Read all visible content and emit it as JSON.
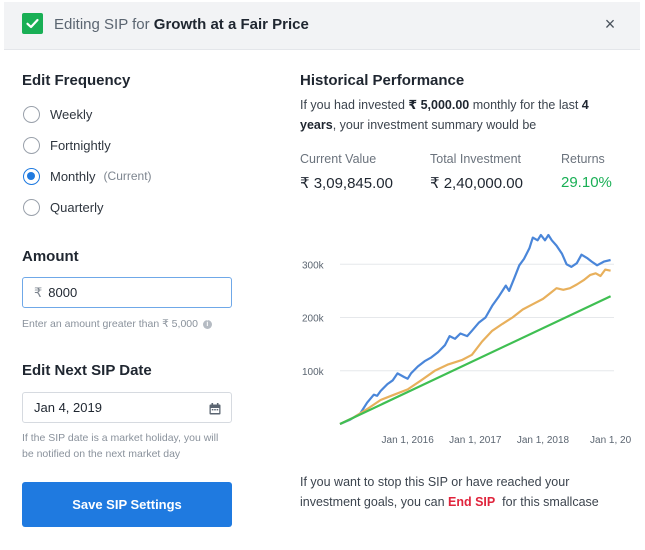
{
  "header": {
    "prefix": "Editing SIP for",
    "name": "Growth at a Fair Price",
    "close_glyph": "×"
  },
  "frequency": {
    "title": "Edit Frequency",
    "options": [
      {
        "label": "Weekly",
        "note": "",
        "selected": false
      },
      {
        "label": "Fortnightly",
        "note": "",
        "selected": false
      },
      {
        "label": "Monthly",
        "note": "(Current)",
        "selected": true
      },
      {
        "label": "Quarterly",
        "note": "",
        "selected": false
      }
    ]
  },
  "amount": {
    "title": "Amount",
    "currency": "₹",
    "value": "8000",
    "hint": "Enter an amount greater than ₹ 5,000"
  },
  "next_date": {
    "title": "Edit Next SIP Date",
    "value": "Jan 4, 2019",
    "hint_line1": "If the SIP date is a market holiday, you will",
    "hint_line2": "be notified on the next market day"
  },
  "save_button": "Save SIP Settings",
  "performance": {
    "title": "Historical Performance",
    "intro_1": "If you had invested ",
    "amount": "₹ 5,000.00",
    "intro_2": " monthly for the last ",
    "years": "4",
    "years_word": "years",
    "intro_3": ", your investment summary would be",
    "current_value_label": "Current Value",
    "current_value": "₹ 3,09,845.00",
    "total_investment_label": "Total Investment",
    "total_investment": "₹ 2,40,000.00",
    "returns_label": "Returns",
    "returns": "29.10%"
  },
  "footer": {
    "text_1": "If you want to stop this SIP or have reached your",
    "text_2": "investment goals, you can ",
    "link": "End SIP",
    "text_3": "  for this smallcase"
  },
  "colors": {
    "primary": "#1f7ae0",
    "green": "#19af55",
    "danger": "#e0243c",
    "series_current": "#4a86d9",
    "series_smallcase": "#e8b05c",
    "series_invested": "#3fbf52"
  },
  "chart_data": {
    "type": "line",
    "x_ticks": [
      "Jan 1, 2016",
      "Jan 1, 2017",
      "Jan 1, 2018",
      "Jan 1, 20"
    ],
    "y_ticks": [
      100000,
      200000,
      300000
    ],
    "y_tick_labels": [
      "100k",
      "200k",
      "300k"
    ],
    "ylim": [
      0,
      370000
    ],
    "xlim": [
      2015.0,
      2019.05
    ],
    "grid": true,
    "series": [
      {
        "color_key": "series_current",
        "points": [
          [
            2015.0,
            0
          ],
          [
            2015.15,
            8000
          ],
          [
            2015.3,
            20000
          ],
          [
            2015.4,
            40000
          ],
          [
            2015.5,
            55000
          ],
          [
            2015.55,
            53000
          ],
          [
            2015.6,
            62000
          ],
          [
            2015.7,
            75000
          ],
          [
            2015.78,
            82000
          ],
          [
            2015.85,
            95000
          ],
          [
            2015.95,
            88000
          ],
          [
            2016.0,
            85000
          ],
          [
            2016.05,
            95000
          ],
          [
            2016.15,
            108000
          ],
          [
            2016.25,
            118000
          ],
          [
            2016.35,
            125000
          ],
          [
            2016.45,
            135000
          ],
          [
            2016.55,
            148000
          ],
          [
            2016.62,
            165000
          ],
          [
            2016.7,
            160000
          ],
          [
            2016.78,
            170000
          ],
          [
            2016.88,
            165000
          ],
          [
            2016.95,
            175000
          ],
          [
            2017.05,
            190000
          ],
          [
            2017.15,
            200000
          ],
          [
            2017.25,
            222000
          ],
          [
            2017.35,
            240000
          ],
          [
            2017.45,
            260000
          ],
          [
            2017.5,
            250000
          ],
          [
            2017.58,
            275000
          ],
          [
            2017.65,
            298000
          ],
          [
            2017.72,
            310000
          ],
          [
            2017.8,
            330000
          ],
          [
            2017.85,
            350000
          ],
          [
            2017.92,
            345000
          ],
          [
            2017.97,
            355000
          ],
          [
            2018.03,
            345000
          ],
          [
            2018.08,
            355000
          ],
          [
            2018.13,
            345000
          ],
          [
            2018.2,
            335000
          ],
          [
            2018.28,
            320000
          ],
          [
            2018.35,
            300000
          ],
          [
            2018.42,
            295000
          ],
          [
            2018.5,
            302000
          ],
          [
            2018.57,
            318000
          ],
          [
            2018.65,
            312000
          ],
          [
            2018.72,
            305000
          ],
          [
            2018.8,
            298000
          ],
          [
            2018.9,
            305000
          ],
          [
            2019.0,
            308000
          ]
        ]
      },
      {
        "color_key": "series_smallcase",
        "points": [
          [
            2015.0,
            0
          ],
          [
            2015.2,
            12000
          ],
          [
            2015.4,
            28000
          ],
          [
            2015.6,
            45000
          ],
          [
            2015.8,
            55000
          ],
          [
            2016.0,
            65000
          ],
          [
            2016.2,
            82000
          ],
          [
            2016.4,
            100000
          ],
          [
            2016.6,
            112000
          ],
          [
            2016.8,
            120000
          ],
          [
            2016.95,
            130000
          ],
          [
            2017.1,
            155000
          ],
          [
            2017.25,
            175000
          ],
          [
            2017.4,
            188000
          ],
          [
            2017.55,
            200000
          ],
          [
            2017.7,
            215000
          ],
          [
            2017.85,
            225000
          ],
          [
            2018.0,
            235000
          ],
          [
            2018.1,
            245000
          ],
          [
            2018.2,
            255000
          ],
          [
            2018.3,
            252000
          ],
          [
            2018.4,
            255000
          ],
          [
            2018.5,
            262000
          ],
          [
            2018.6,
            270000
          ],
          [
            2018.7,
            280000
          ],
          [
            2018.78,
            283000
          ],
          [
            2018.85,
            278000
          ],
          [
            2018.92,
            290000
          ],
          [
            2019.0,
            288000
          ]
        ]
      },
      {
        "color_key": "series_invested",
        "points": [
          [
            2015.0,
            0
          ],
          [
            2019.0,
            240000
          ]
        ]
      }
    ]
  }
}
